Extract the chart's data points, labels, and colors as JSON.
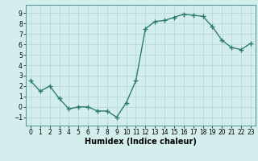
{
  "x": [
    0,
    1,
    2,
    3,
    4,
    5,
    6,
    7,
    8,
    9,
    10,
    11,
    12,
    13,
    14,
    15,
    16,
    17,
    18,
    19,
    20,
    21,
    22,
    23
  ],
  "y": [
    2.5,
    1.5,
    2.0,
    0.8,
    -0.2,
    0.0,
    0.0,
    -0.4,
    -0.4,
    -1.0,
    0.4,
    2.5,
    7.5,
    8.2,
    8.3,
    8.6,
    8.9,
    8.8,
    8.7,
    7.7,
    6.4,
    5.7,
    5.5,
    6.1
  ],
  "line_color": "#2e7d6e",
  "marker": "+",
  "markersize": 4,
  "linewidth": 1.0,
  "xlabel": "Humidex (Indice chaleur)",
  "xlim": [
    -0.5,
    23.5
  ],
  "ylim": [
    -1.8,
    9.8
  ],
  "yticks": [
    -1,
    0,
    1,
    2,
    3,
    4,
    5,
    6,
    7,
    8,
    9
  ],
  "xticks": [
    0,
    1,
    2,
    3,
    4,
    5,
    6,
    7,
    8,
    9,
    10,
    11,
    12,
    13,
    14,
    15,
    16,
    17,
    18,
    19,
    20,
    21,
    22,
    23
  ],
  "bg_color": "#d4eeee",
  "grid_color": "#b8d8d8",
  "tick_labelsize": 5.5,
  "xlabel_fontsize": 7
}
